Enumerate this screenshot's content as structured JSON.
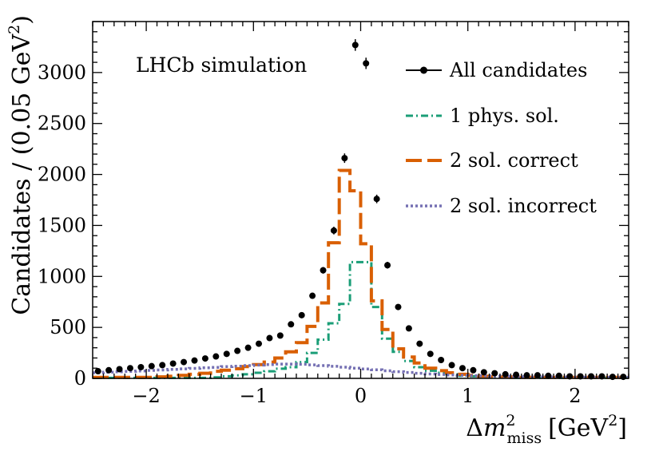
{
  "chart_data": {
    "type": "line",
    "title": "",
    "annotation": "LHCb simulation",
    "xlabel": {
      "delta": "Δ",
      "m": "m",
      "sup": "2",
      "sub": "miss",
      "unit_prefix": "[GeV",
      "unit_sup": "2",
      "unit_suffix": "]"
    },
    "ylabel": {
      "main": "Candidates / (0.05 GeV",
      "sup": "2",
      "suffix": ")"
    },
    "xlim": [
      -2.5,
      2.5
    ],
    "ylim": [
      0,
      3500
    ],
    "xticks": [
      -2,
      -1,
      0,
      1,
      2
    ],
    "xtick_labels": [
      "−2",
      "−1",
      "0",
      "1",
      "2"
    ],
    "yticks": [
      0,
      500,
      1000,
      1500,
      2000,
      2500,
      3000
    ],
    "ytick_labels": [
      "0",
      "500",
      "1000",
      "1500",
      "2000",
      "2500",
      "3000"
    ],
    "bin_edges": [
      -2.5,
      -2.4,
      -2.3,
      -2.2,
      -2.1,
      -2.0,
      -1.9,
      -1.8,
      -1.7,
      -1.6,
      -1.5,
      -1.4,
      -1.3,
      -1.2,
      -1.1,
      -1.0,
      -0.9,
      -0.8,
      -0.7,
      -0.6,
      -0.5,
      -0.4,
      -0.3,
      -0.2,
      -0.1,
      0.0,
      0.1,
      0.2,
      0.3,
      0.4,
      0.5,
      0.6,
      0.7,
      0.8,
      0.9,
      1.0,
      1.1,
      1.2,
      1.3,
      1.4,
      1.5,
      1.6,
      1.7,
      1.8,
      1.9,
      2.0,
      2.1,
      2.2,
      2.3,
      2.4,
      2.5
    ],
    "points": {
      "name": "All candidates",
      "color": "#000000",
      "x": [
        -2.45,
        -2.35,
        -2.25,
        -2.15,
        -2.05,
        -1.95,
        -1.85,
        -1.75,
        -1.65,
        -1.55,
        -1.45,
        -1.35,
        -1.25,
        -1.15,
        -1.05,
        -0.95,
        -0.85,
        -0.75,
        -0.65,
        -0.55,
        -0.45,
        -0.35,
        -0.25,
        -0.15,
        -0.05,
        0.05,
        0.15,
        0.25,
        0.35,
        0.45,
        0.55,
        0.65,
        0.75,
        0.85,
        0.95,
        1.05,
        1.15,
        1.25,
        1.35,
        1.45,
        1.55,
        1.65,
        1.75,
        1.85,
        1.95,
        2.05,
        2.15,
        2.25,
        2.35,
        2.45
      ],
      "y": [
        70,
        80,
        90,
        100,
        110,
        120,
        130,
        145,
        160,
        175,
        195,
        215,
        240,
        270,
        300,
        340,
        395,
        420,
        530,
        620,
        810,
        1060,
        1450,
        2160,
        3270,
        3090,
        1760,
        1110,
        700,
        490,
        340,
        240,
        180,
        130,
        100,
        80,
        60,
        50,
        40,
        35,
        30,
        30,
        25,
        25,
        20,
        20,
        20,
        20,
        15,
        15
      ]
    },
    "series": [
      {
        "name": "1 phys. sol.",
        "color": "#1b9e77",
        "style": "dash-dot",
        "values": [
          5,
          5,
          5,
          5,
          5,
          5,
          5,
          5,
          5,
          5,
          5,
          10,
          20,
          30,
          40,
          55,
          70,
          95,
          110,
          160,
          250,
          380,
          540,
          730,
          1140,
          1140,
          700,
          390,
          260,
          170,
          110,
          75,
          55,
          40,
          25,
          20,
          15,
          10,
          10,
          5,
          5,
          5,
          5,
          5,
          5,
          5,
          5,
          5,
          5,
          5
        ]
      },
      {
        "name": "2 sol. correct",
        "color": "#d95f02",
        "style": "long-dash",
        "values": [
          10,
          10,
          10,
          10,
          10,
          10,
          15,
          20,
          30,
          40,
          50,
          70,
          80,
          95,
          115,
          135,
          160,
          200,
          260,
          350,
          510,
          740,
          1330,
          2040,
          1840,
          1320,
          760,
          480,
          290,
          210,
          150,
          100,
          75,
          55,
          40,
          30,
          20,
          15,
          15,
          10,
          10,
          10,
          10,
          10,
          10,
          10,
          10,
          10,
          10,
          10
        ]
      },
      {
        "name": "2 sol. incorrect",
        "color": "#7570b3",
        "style": "dotted",
        "values": [
          55,
          60,
          65,
          68,
          72,
          78,
          82,
          88,
          93,
          98,
          104,
          108,
          115,
          120,
          125,
          130,
          135,
          140,
          140,
          138,
          132,
          125,
          118,
          110,
          100,
          92,
          84,
          74,
          66,
          58,
          50,
          43,
          38,
          33,
          30,
          27,
          24,
          22,
          20,
          18,
          16,
          15,
          14,
          13,
          12,
          11,
          10,
          10,
          10,
          10
        ]
      }
    ],
    "legend": {
      "placement": "top-right",
      "entries": [
        "All candidates",
        "1 phys. sol.",
        "2 sol. correct",
        "2 sol. incorrect"
      ]
    }
  }
}
